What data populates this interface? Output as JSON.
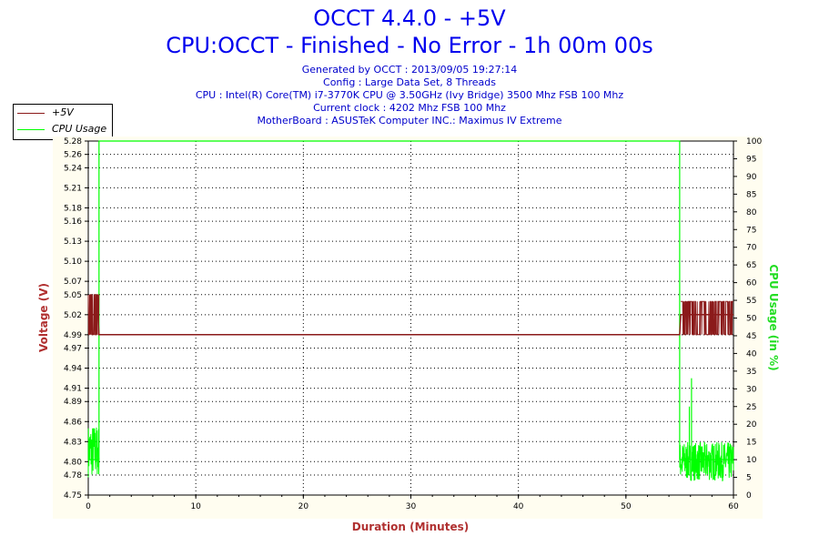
{
  "header": {
    "title": "OCCT 4.4.0 - +5V",
    "subtitle": "CPU:OCCT - Finished - No Error - 1h 00m 00s",
    "info_lines": [
      "Generated by OCCT : 2013/09/05 19:27:14",
      "Config : Large Data Set, 8 Threads",
      "CPU : Intel(R) Core(TM) i7-3770K CPU @ 3.50GHz (Ivy Bridge) 3500 Mhz FSB 100 Mhz",
      "Current clock : 4202 Mhz FSB 100 Mhz",
      "MotherBoard : ASUSTeK Computer INC.: Maximus IV Extreme"
    ]
  },
  "colors": {
    "voltage": "#8b1a1a",
    "cpu": "#00ff00",
    "title": "#0000ee",
    "info": "#0000cc",
    "axis_label_left": "#b03030",
    "axis_label_right": "#22dd22",
    "axis_label_bottom": "#b03030",
    "plot_bg": "#ffffff",
    "outer_bg": "#fffdf0"
  },
  "legend": {
    "items": [
      {
        "label": "+5V",
        "color": "#8b1a1a"
      },
      {
        "label": "CPU Usage",
        "color": "#00ff00"
      }
    ]
  },
  "chart_data": {
    "type": "line",
    "title": "OCCT 4.4.0 - +5V",
    "subtitle": "CPU:OCCT - Finished - No Error - 1h 00m 00s",
    "xlabel": "Duration (Minutes)",
    "ylabel": "Voltage (V)",
    "y2label": "CPU Usage (in %)",
    "xlim": [
      0,
      60
    ],
    "ylim": [
      4.75,
      5.28
    ],
    "y2lim": [
      0,
      100
    ],
    "x_ticks": [
      0,
      10,
      20,
      30,
      40,
      50,
      60
    ],
    "y_ticks": [
      4.75,
      4.78,
      4.8,
      4.83,
      4.86,
      4.89,
      4.91,
      4.94,
      4.97,
      4.99,
      5.02,
      5.05,
      5.07,
      5.1,
      5.13,
      5.16,
      5.18,
      5.21,
      5.24,
      5.26,
      5.28
    ],
    "y_tick_labels": [
      "4.75",
      "4.78",
      "4.80",
      "4.83",
      "4.86",
      "4.89",
      "4.91",
      "4.94",
      "4.97",
      "4.99",
      "5.02",
      "5.05",
      "5.07",
      "5.10",
      "5.13",
      "5.16",
      "5.18",
      "5.21",
      "5.24",
      "5.26",
      "5.28"
    ],
    "y2_ticks": [
      0,
      5,
      10,
      15,
      20,
      25,
      30,
      35,
      40,
      45,
      50,
      55,
      60,
      65,
      70,
      75,
      80,
      85,
      90,
      95,
      100
    ],
    "grid": true,
    "legend_position": "top-left",
    "series": [
      {
        "name": "+5V",
        "axis": "left",
        "color": "#8b1a1a",
        "x": [
          0,
          0.9,
          1.0,
          55.0,
          55.1,
          60
        ],
        "y": [
          5.02,
          5.02,
          4.99,
          4.99,
          5.02,
          5.02
        ],
        "noisy_ranges": [
          {
            "x_from": 0,
            "x_to": 1.0,
            "y_min": 4.99,
            "y_max": 5.05
          },
          {
            "x_from": 55.1,
            "x_to": 60,
            "y_min": 4.99,
            "y_max": 5.04
          }
        ]
      },
      {
        "name": "CPU Usage",
        "axis": "right",
        "color": "#00ff00",
        "x": [
          0,
          1.0,
          1.0,
          55.0,
          55.0,
          60
        ],
        "y": [
          10,
          10,
          100,
          100,
          10,
          10
        ],
        "noisy_ranges": [
          {
            "x_from": 0,
            "x_to": 1.0,
            "y_min": 5,
            "y_max": 20
          },
          {
            "x_from": 55.0,
            "x_to": 60,
            "y_min": 4,
            "y_max": 15
          }
        ],
        "spikes": [
          {
            "x": 56.1,
            "y": 33
          },
          {
            "x": 55.9,
            "y": 25
          }
        ]
      }
    ]
  }
}
